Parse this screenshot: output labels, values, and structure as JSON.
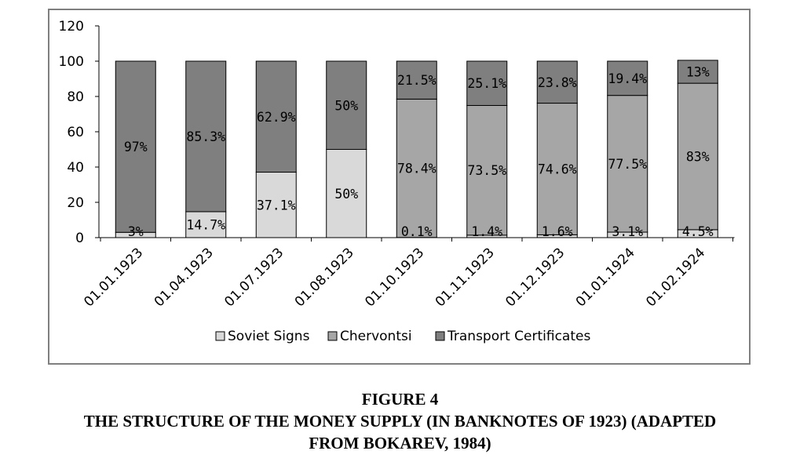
{
  "chart_data": {
    "type": "bar",
    "stacked": true,
    "categories": [
      "01.01.1923",
      "01.04.1923",
      "01.07.1923",
      "01.08.1923",
      "01.10.1923",
      "01.11.1923",
      "01.12.1923",
      "01.01.1924",
      "01.02.1924"
    ],
    "series": [
      {
        "name": "Soviet Signs",
        "color": "#d9d9d9",
        "values": [
          3,
          14.7,
          37.1,
          50,
          0.1,
          1.4,
          1.6,
          3.1,
          4.5
        ],
        "labels": [
          "3%",
          "14.7%",
          "37.1%",
          "50%",
          "0.1%",
          "1.4%",
          "1.6%",
          "3.1%",
          "4.5%"
        ]
      },
      {
        "name": "Chervontsi",
        "color": "#a6a6a6",
        "values": [
          0,
          0,
          0,
          0,
          78.4,
          73.5,
          74.6,
          77.5,
          83
        ],
        "labels": [
          "",
          "",
          "",
          "",
          "78.4%",
          "73.5%",
          "74.6%",
          "77.5%",
          "83%"
        ]
      },
      {
        "name": "Transport Certificates",
        "color": "#7f7f7f",
        "values": [
          97,
          85.3,
          62.9,
          50,
          21.5,
          25.1,
          23.8,
          19.4,
          13
        ],
        "labels": [
          "97%",
          "85.3%",
          "62.9%",
          "50%",
          "21.5%",
          "25.1%",
          "23.8%",
          "19.4%",
          "13%"
        ]
      }
    ],
    "yticks": [
      "0",
      "20",
      "40",
      "60",
      "80",
      "100",
      "120"
    ],
    "ylim": [
      0,
      120
    ],
    "grid": false,
    "legend_position": "bottom"
  },
  "caption": {
    "line1": "FIGURE 4",
    "line2": "THE STRUCTURE OF THE MONEY SUPPLY (IN BANKNOTES OF 1923) (ADAPTED",
    "line3": "FROM BOKAREV, 1984)"
  }
}
